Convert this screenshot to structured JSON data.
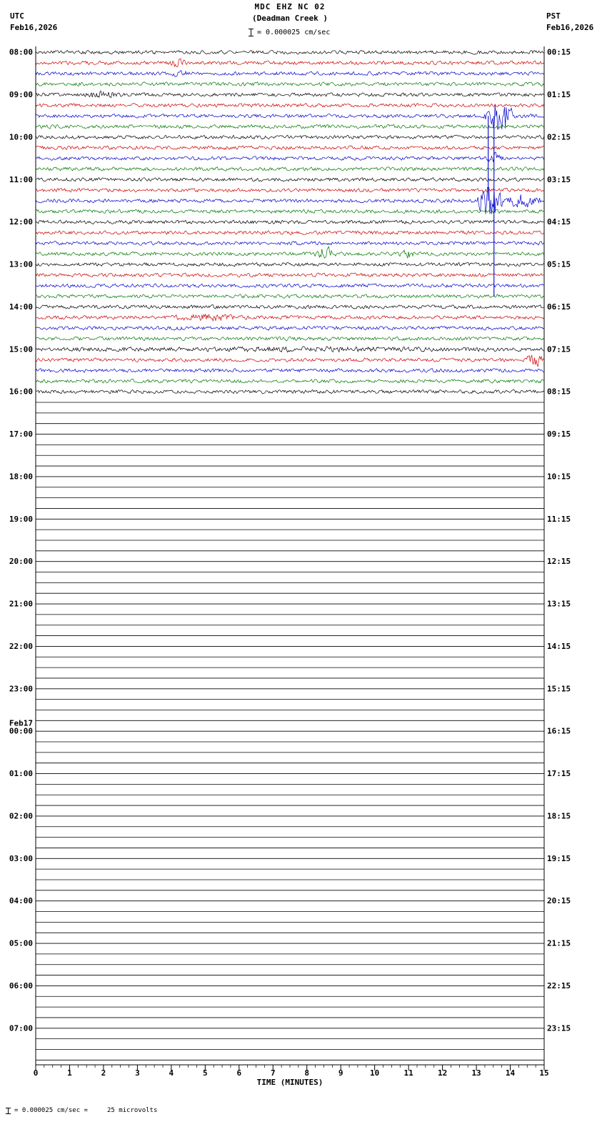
{
  "title": "MDC EHZ NC 02",
  "subtitle": "(Deadman Creek )",
  "header": {
    "left_tz": "UTC",
    "left_date": "Feb16,2026",
    "right_tz": "PST",
    "right_date": "Feb16,2026",
    "scale_label": "= 0.000025 cm/sec"
  },
  "footer": {
    "axis_label": "TIME (MINUTES)",
    "scale_note": "= 0.000025 cm/sec =",
    "scale_value": "25 microvolts"
  },
  "chart_data": {
    "type": "line",
    "kind": "helicorder-seismogram",
    "x_range": [
      0,
      15
    ],
    "x_ticks": [
      0,
      1,
      2,
      3,
      4,
      5,
      6,
      7,
      8,
      9,
      10,
      11,
      12,
      13,
      14,
      15
    ],
    "minor_ticks_per_minute": 4,
    "rows_per_hour": 4,
    "minutes_per_row": 15,
    "total_rows": 96,
    "active_rows": 33,
    "base_amplitude": 2.2,
    "seed": 42,
    "row_colors": [
      "#000000",
      "#cc0000",
      "#0000cc",
      "#007700"
    ],
    "flat_row_color": "#000000",
    "utc_labels": [
      "08:00",
      "09:00",
      "10:00",
      "11:00",
      "12:00",
      "13:00",
      "14:00",
      "15:00",
      "16:00",
      "17:00",
      "18:00",
      "19:00",
      "20:00",
      "21:00",
      "22:00",
      "23:00",
      "00:00",
      "01:00",
      "02:00",
      "03:00",
      "04:00",
      "05:00",
      "06:00",
      "07:00"
    ],
    "pst_labels": [
      "00:15",
      "01:15",
      "02:15",
      "03:15",
      "04:15",
      "05:15",
      "06:15",
      "07:15",
      "08:15",
      "09:15",
      "10:15",
      "11:15",
      "12:15",
      "13:15",
      "14:15",
      "15:15",
      "16:15",
      "17:15",
      "18:15",
      "19:15",
      "20:15",
      "21:15",
      "22:15",
      "23:15"
    ],
    "date_break": {
      "index": 16,
      "label": "Feb17"
    },
    "events": [
      {
        "type": "burst",
        "row": 1,
        "x0": 3.9,
        "x1": 4.5,
        "amp": 5
      },
      {
        "type": "burst",
        "row": 2,
        "x0": 4.0,
        "x1": 4.5,
        "amp": 4
      },
      {
        "type": "burst",
        "row": 4,
        "x0": 1.2,
        "x1": 2.6,
        "amp": 3
      },
      {
        "type": "burst",
        "row": 6,
        "x0": 13.2,
        "x1": 14.2,
        "amp": 25
      },
      {
        "type": "vline",
        "row": 6,
        "to_row": 14,
        "x": 13.35
      },
      {
        "type": "vline",
        "row": 6,
        "to_row": 23,
        "x": 13.52
      },
      {
        "type": "burst",
        "row": 10,
        "x0": 13.3,
        "x1": 13.9,
        "amp": 8
      },
      {
        "type": "burst",
        "row": 14,
        "x0": 13.0,
        "x1": 13.8,
        "amp": 40
      },
      {
        "type": "burst",
        "row": 14,
        "x0": 13.8,
        "x1": 15.0,
        "amp": 10
      },
      {
        "type": "burst",
        "row": 19,
        "x0": 8.2,
        "x1": 8.9,
        "amp": 9
      },
      {
        "type": "burst",
        "row": 19,
        "x0": 10.7,
        "x1": 11.2,
        "amp": 5
      },
      {
        "type": "burst",
        "row": 25,
        "x0": 3.8,
        "x1": 6.3,
        "amp": 3
      },
      {
        "type": "burst",
        "row": 28,
        "x0": 0.0,
        "x1": 15.0,
        "amp": 1.5
      },
      {
        "type": "burst",
        "row": 29,
        "x0": 14.4,
        "x1": 15.0,
        "amp": 8
      }
    ]
  }
}
